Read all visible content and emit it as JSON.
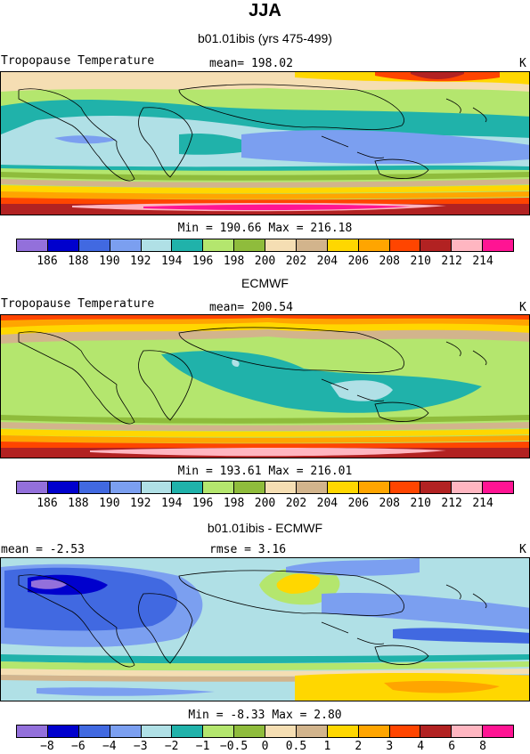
{
  "title": "JJA",
  "panels": [
    {
      "heading": "b01.01ibis (yrs 475-499)",
      "left_label": "Tropopause Temperature",
      "center_label": "mean=  198.02",
      "units": "K",
      "minmax": "Min = 190.66 Max = 216.18",
      "colorbar": "abs"
    },
    {
      "heading": "ECMWF",
      "left_label": "Tropopause Temperature",
      "center_label": "mean=  200.54",
      "units": "K",
      "minmax": "Min = 193.61 Max = 216.01",
      "colorbar": "abs"
    },
    {
      "heading": "b01.01ibis - ECMWF",
      "left_label": "mean =   -2.53",
      "center_label": "rmse =    3.16",
      "units": "K",
      "minmax": "Min =   -8.33 Max =    2.80",
      "colorbar": "diff"
    }
  ],
  "colorbars": {
    "colors": [
      "#9370db",
      "#0000cd",
      "#4169e1",
      "#7b9ff0",
      "#b0e0e6",
      "#20b2aa",
      "#b4e66e",
      "#8fbc3c",
      "#f5deb3",
      "#d2b48c",
      "#ffd700",
      "#ffa500",
      "#ff4500",
      "#b22222",
      "#ffb6c1",
      "#ff1493"
    ],
    "abs_ticks": [
      "186",
      "188",
      "190",
      "192",
      "194",
      "196",
      "198",
      "200",
      "202",
      "204",
      "206",
      "208",
      "210",
      "212",
      "214"
    ],
    "diff_ticks": [
      "−8",
      "−6",
      "−4",
      "−3",
      "−2",
      "−1",
      "−0.5",
      "0",
      "0.5",
      "1",
      "2",
      "3",
      "4",
      "6",
      "8"
    ]
  }
}
